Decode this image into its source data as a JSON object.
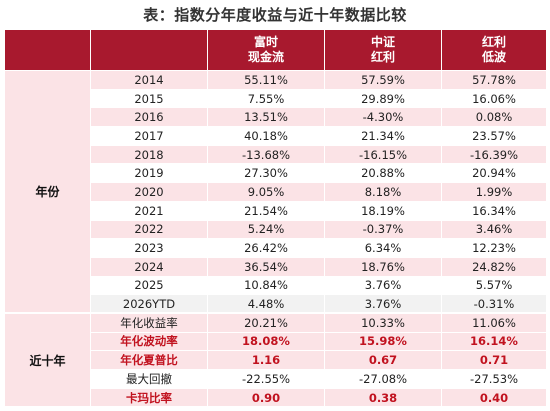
{
  "title": "表：指数分年度收益与近十年数据比较",
  "headers": [
    "",
    "富时\n现金流",
    "中证\n红利",
    "红利\n低波"
  ],
  "year_group_label": "年份",
  "years": [
    {
      "label": "2014",
      "v": [
        "55.11%",
        "57.59%",
        "57.78%"
      ]
    },
    {
      "label": "2015",
      "v": [
        "7.55%",
        "29.89%",
        "16.06%"
      ]
    },
    {
      "label": "2016",
      "v": [
        "13.51%",
        "-4.30%",
        "0.08%"
      ]
    },
    {
      "label": "2017",
      "v": [
        "40.18%",
        "21.34%",
        "23.57%"
      ]
    },
    {
      "label": "2018",
      "v": [
        "-13.68%",
        "-16.15%",
        "-16.39%"
      ]
    },
    {
      "label": "2019",
      "v": [
        "27.30%",
        "20.88%",
        "20.94%"
      ]
    },
    {
      "label": "2020",
      "v": [
        "9.05%",
        "8.18%",
        "1.99%"
      ]
    },
    {
      "label": "2021",
      "v": [
        "21.54%",
        "18.19%",
        "16.34%"
      ]
    },
    {
      "label": "2022",
      "v": [
        "5.24%",
        "-0.37%",
        "3.46%"
      ]
    },
    {
      "label": "2023",
      "v": [
        "26.42%",
        "6.34%",
        "12.23%"
      ]
    },
    {
      "label": "2024",
      "v": [
        "36.54%",
        "18.76%",
        "24.82%"
      ]
    },
    {
      "label": "2025",
      "v": [
        "10.84%",
        "3.76%",
        "5.57%"
      ]
    },
    {
      "label": "2026YTD",
      "v": [
        "4.48%",
        "3.76%",
        "-0.31%"
      ]
    }
  ],
  "ten_group_label": "近十年",
  "ten_year": [
    {
      "label": "年化收益率",
      "v": [
        "20.21%",
        "10.33%",
        "11.06%"
      ],
      "emph": false
    },
    {
      "label": "年化波动率",
      "v": [
        "18.08%",
        "15.98%",
        "16.14%"
      ],
      "emph": true
    },
    {
      "label": "年化夏普比",
      "v": [
        "1.16",
        "0.67",
        "0.71"
      ],
      "emph": true
    },
    {
      "label": "最大回撤",
      "v": [
        "-22.55%",
        "-27.08%",
        "-27.53%"
      ],
      "emph": false
    },
    {
      "label": "卡玛比率",
      "v": [
        "0.90",
        "0.38",
        "0.40"
      ],
      "emph": true
    }
  ],
  "colors": {
    "header": "#a8192e",
    "band": "#fbe3e6",
    "emphasis": "#c1121f"
  }
}
